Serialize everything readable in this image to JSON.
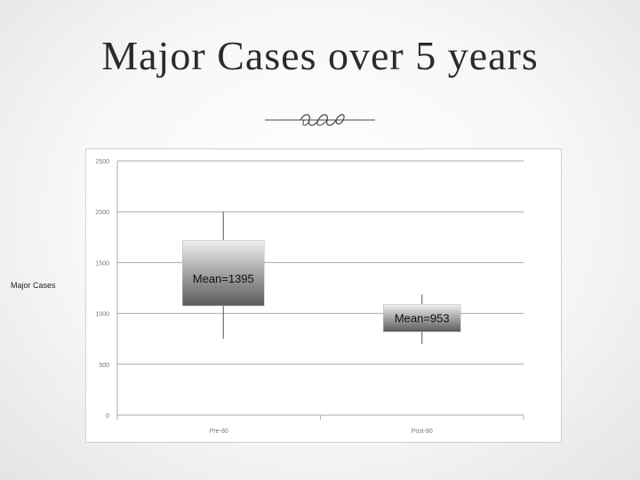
{
  "slide": {
    "title": "Major Cases over 5 years",
    "side_label": "Major Cases"
  },
  "chart_data": {
    "type": "box",
    "categories": [
      "Pre-80",
      "Post-80"
    ],
    "ylim": [
      0,
      2500
    ],
    "yticks": [
      0,
      500,
      1000,
      1500,
      2000,
      2500
    ],
    "grid": true,
    "boxes": [
      {
        "category": "Pre-80",
        "whisker_low": 750,
        "q1": 1075,
        "q3": 1720,
        "whisker_high": 2000,
        "label": "Mean=1395"
      },
      {
        "category": "Post-80",
        "whisker_low": 700,
        "q1": 820,
        "q3": 1090,
        "whisker_high": 1185,
        "label": "Mean=953"
      }
    ],
    "colors": {
      "box_top": "#f0f0f0",
      "box_bottom": "#5a5a5a",
      "grid": "#a8a8a8",
      "whisker": "#555555"
    }
  }
}
